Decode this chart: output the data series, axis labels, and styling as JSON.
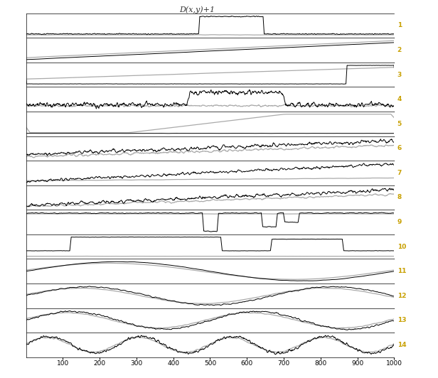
{
  "n_series": 14,
  "n_points": 1000,
  "title": "D(x,y)+1",
  "xlim": [
    1,
    1000
  ],
  "xticks": [
    100,
    200,
    300,
    400,
    500,
    600,
    700,
    800,
    900,
    1000
  ],
  "label_color": "#c8a000",
  "black_color": "#000000",
  "gray_color": "#aaaaaa",
  "background_color": "#ffffff",
  "label_fontsize": 7,
  "lw_black": 0.7,
  "lw_gray": 0.9
}
